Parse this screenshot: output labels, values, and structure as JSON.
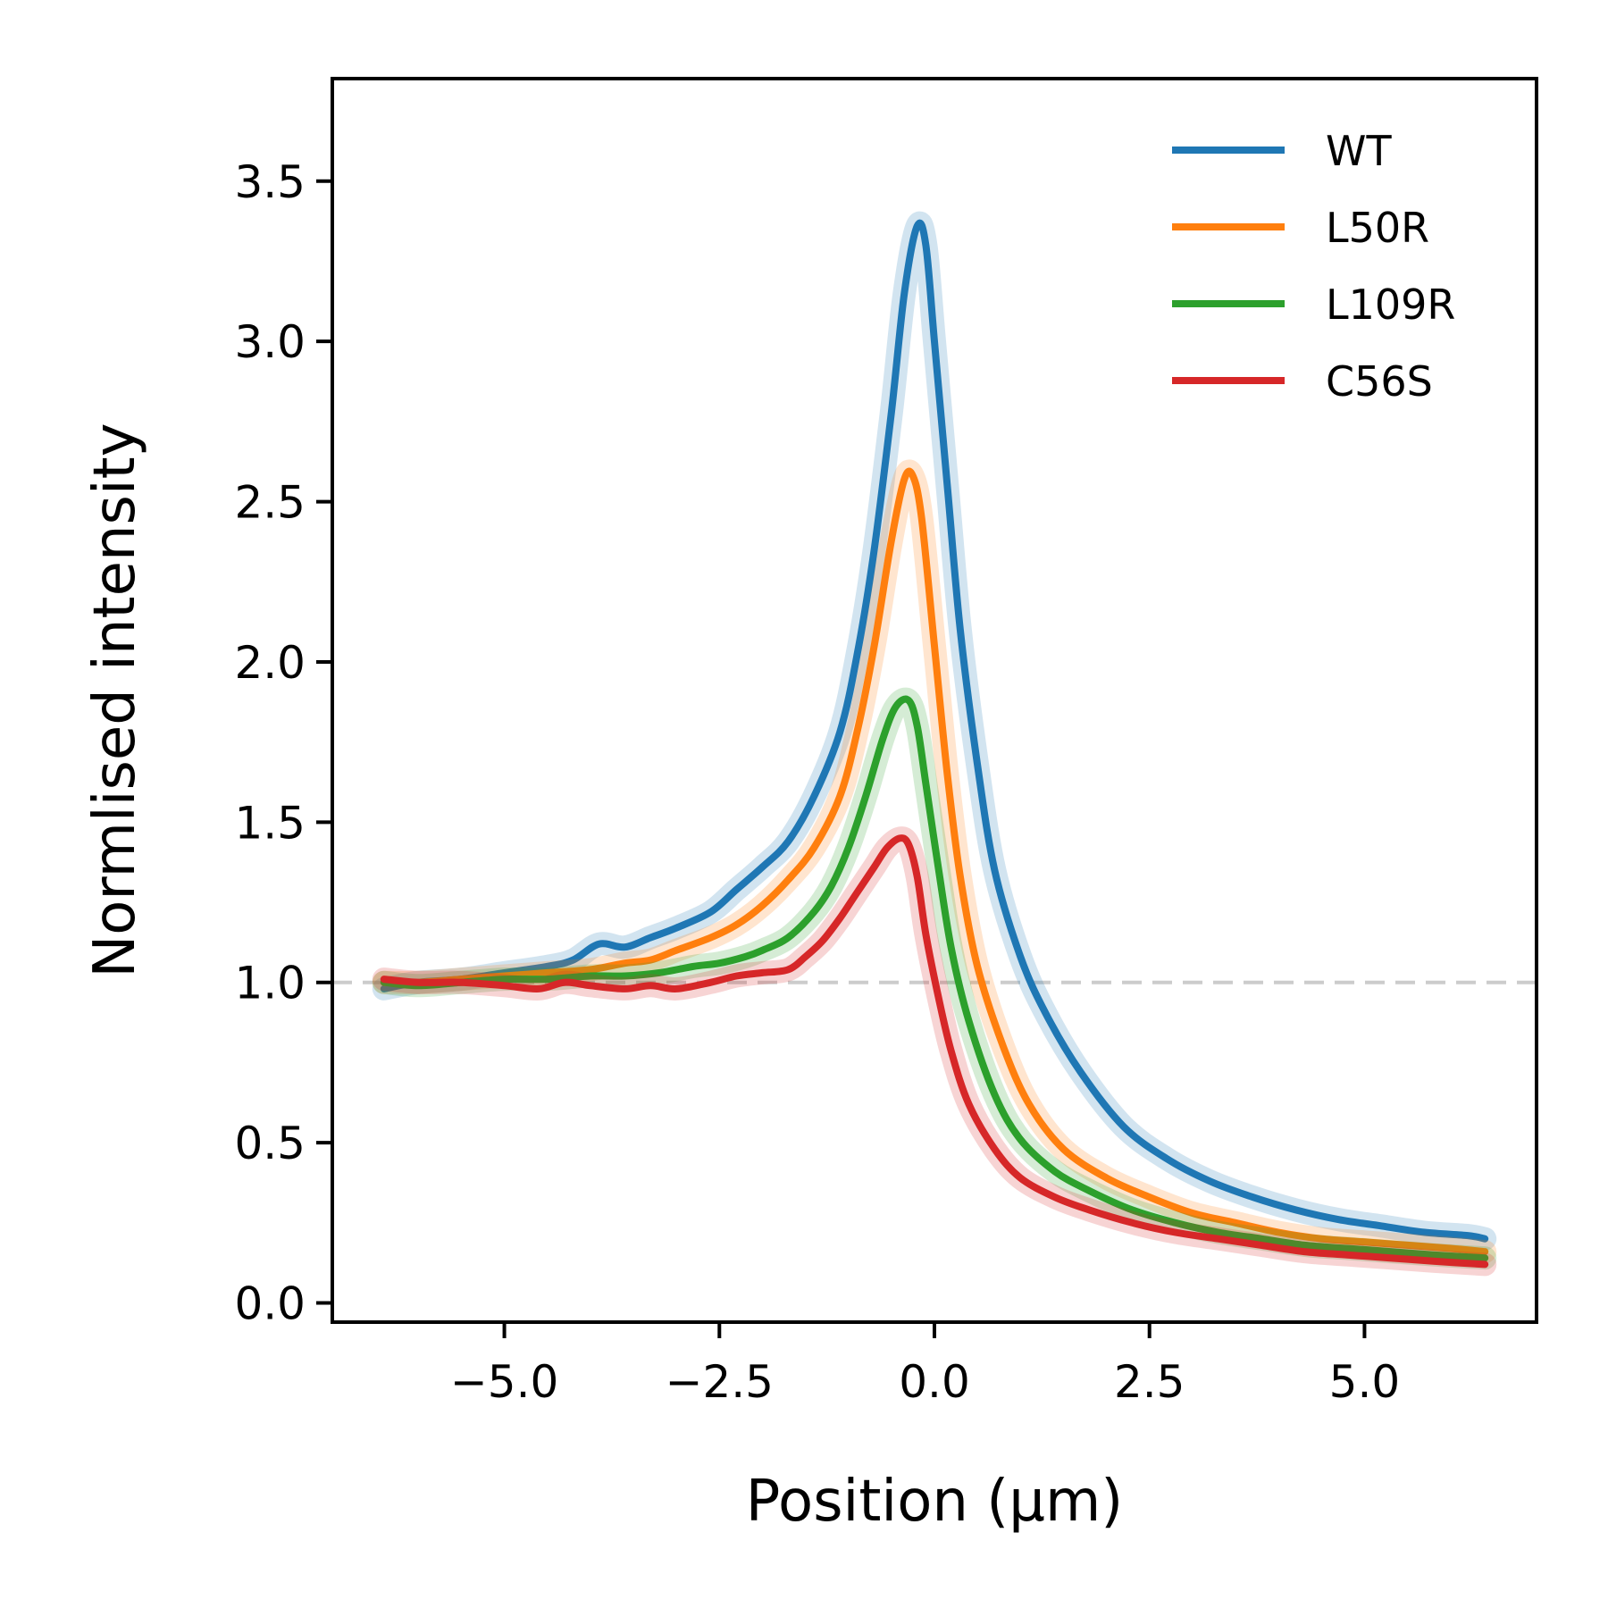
{
  "chart_data": {
    "type": "line",
    "title": "",
    "xlabel": "Position (µm)",
    "ylabel": "Normlised intensity",
    "xlim": [
      -7.0,
      7.0
    ],
    "ylim": [
      -0.06,
      3.82
    ],
    "xticks": [
      -5.0,
      -2.5,
      0.0,
      2.5,
      5.0
    ],
    "xtick_labels": [
      "−5.0",
      "−2.5",
      "0.0",
      "2.5",
      "5.0"
    ],
    "yticks": [
      0.0,
      0.5,
      1.0,
      1.5,
      2.0,
      2.5,
      3.0,
      3.5
    ],
    "ytick_labels": [
      "0.0",
      "0.5",
      "1.0",
      "1.5",
      "2.0",
      "2.5",
      "3.0",
      "3.5"
    ],
    "grid": false,
    "legend_position": "top-right",
    "reference_line": {
      "y": 1.0,
      "style": "dashed",
      "color": "#cccccc"
    },
    "series": [
      {
        "name": "WT",
        "color": "#1f77b4",
        "x": [
          -6.4,
          -6.0,
          -5.5,
          -5.0,
          -4.5,
          -4.2,
          -3.9,
          -3.6,
          -3.3,
          -3.0,
          -2.6,
          -2.3,
          -2.0,
          -1.7,
          -1.4,
          -1.1,
          -0.9,
          -0.7,
          -0.5,
          -0.35,
          -0.2,
          -0.1,
          0.0,
          0.15,
          0.3,
          0.5,
          0.7,
          1.0,
          1.3,
          1.7,
          2.2,
          2.7,
          3.2,
          3.7,
          4.2,
          4.7,
          5.2,
          5.7,
          6.2,
          6.4
        ],
        "y": [
          0.98,
          1.0,
          1.01,
          1.03,
          1.05,
          1.07,
          1.12,
          1.11,
          1.14,
          1.17,
          1.22,
          1.29,
          1.36,
          1.44,
          1.58,
          1.78,
          2.02,
          2.35,
          2.78,
          3.15,
          3.36,
          3.3,
          3.0,
          2.55,
          2.1,
          1.68,
          1.35,
          1.08,
          0.9,
          0.72,
          0.55,
          0.45,
          0.38,
          0.33,
          0.29,
          0.26,
          0.24,
          0.22,
          0.21,
          0.2
        ]
      },
      {
        "name": "L50R",
        "color": "#ff7f0e",
        "x": [
          -6.4,
          -6.0,
          -5.5,
          -5.0,
          -4.5,
          -4.0,
          -3.6,
          -3.3,
          -3.0,
          -2.6,
          -2.3,
          -2.0,
          -1.7,
          -1.4,
          -1.1,
          -0.9,
          -0.7,
          -0.5,
          -0.35,
          -0.25,
          -0.15,
          0.0,
          0.15,
          0.3,
          0.5,
          0.8,
          1.1,
          1.5,
          2.0,
          2.5,
          3.0,
          3.5,
          4.0,
          4.5,
          5.0,
          5.5,
          6.0,
          6.4
        ],
        "y": [
          1.0,
          1.0,
          1.01,
          1.02,
          1.03,
          1.04,
          1.06,
          1.07,
          1.1,
          1.14,
          1.18,
          1.24,
          1.32,
          1.42,
          1.58,
          1.78,
          2.05,
          2.38,
          2.57,
          2.58,
          2.45,
          2.05,
          1.65,
          1.33,
          1.05,
          0.8,
          0.62,
          0.48,
          0.39,
          0.33,
          0.28,
          0.25,
          0.22,
          0.2,
          0.19,
          0.18,
          0.17,
          0.16
        ]
      },
      {
        "name": "L109R",
        "color": "#2ca02c",
        "x": [
          -6.4,
          -6.0,
          -5.5,
          -5.0,
          -4.5,
          -4.0,
          -3.6,
          -3.2,
          -2.8,
          -2.5,
          -2.2,
          -2.0,
          -1.7,
          -1.4,
          -1.2,
          -1.0,
          -0.8,
          -0.6,
          -0.45,
          -0.3,
          -0.2,
          -0.1,
          0.05,
          0.2,
          0.4,
          0.7,
          1.0,
          1.4,
          1.8,
          2.3,
          2.8,
          3.3,
          3.8,
          4.3,
          4.8,
          5.3,
          5.8,
          6.4
        ],
        "y": [
          1.0,
          0.99,
          1.0,
          1.01,
          1.01,
          1.02,
          1.02,
          1.03,
          1.05,
          1.06,
          1.08,
          1.1,
          1.14,
          1.22,
          1.3,
          1.42,
          1.58,
          1.76,
          1.86,
          1.88,
          1.8,
          1.62,
          1.35,
          1.1,
          0.88,
          0.65,
          0.51,
          0.41,
          0.35,
          0.29,
          0.25,
          0.22,
          0.2,
          0.18,
          0.17,
          0.16,
          0.15,
          0.14
        ]
      },
      {
        "name": "C56S",
        "color": "#d62728",
        "x": [
          -6.4,
          -6.0,
          -5.5,
          -5.0,
          -4.6,
          -4.3,
          -4.0,
          -3.6,
          -3.3,
          -3.0,
          -2.6,
          -2.3,
          -2.0,
          -1.7,
          -1.5,
          -1.3,
          -1.1,
          -0.9,
          -0.7,
          -0.55,
          -0.4,
          -0.3,
          -0.2,
          -0.1,
          0.05,
          0.2,
          0.4,
          0.7,
          1.0,
          1.4,
          1.8,
          2.3,
          2.8,
          3.3,
          3.8,
          4.3,
          4.8,
          5.3,
          5.8,
          6.4
        ],
        "y": [
          1.01,
          1.0,
          1.0,
          0.99,
          0.98,
          1.0,
          0.99,
          0.98,
          0.99,
          0.98,
          1.0,
          1.02,
          1.03,
          1.04,
          1.08,
          1.13,
          1.2,
          1.28,
          1.36,
          1.42,
          1.45,
          1.43,
          1.33,
          1.15,
          0.95,
          0.78,
          0.62,
          0.48,
          0.39,
          0.33,
          0.29,
          0.25,
          0.22,
          0.2,
          0.18,
          0.16,
          0.15,
          0.14,
          0.13,
          0.12
        ]
      }
    ]
  }
}
